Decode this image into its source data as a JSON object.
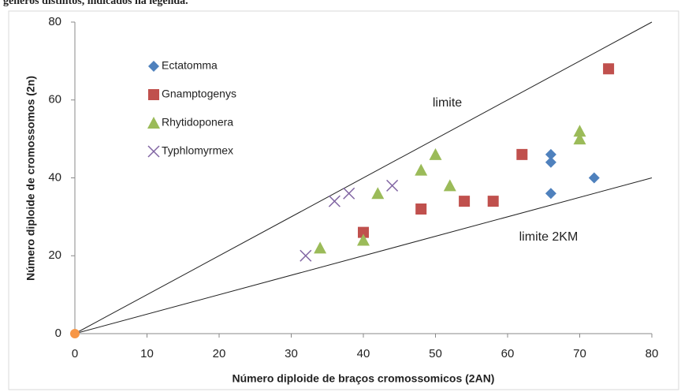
{
  "caption": "gêneros distintos, indicados na legenda.",
  "chart_data": {
    "type": "scatter",
    "xlabel": "Número diploide de braços cromossomicos (2AN)",
    "ylabel": "Número diploide de cromossomos (2n)",
    "xlim": [
      0,
      80
    ],
    "ylim": [
      0,
      80
    ],
    "xticks": [
      0,
      10,
      20,
      30,
      40,
      50,
      60,
      70,
      80
    ],
    "yticks": [
      0,
      20,
      40,
      60,
      80
    ],
    "grid": false,
    "legend": "upper left",
    "series": [
      {
        "name": "Ectatomma",
        "color": "#4f81bd",
        "marker": "diamond",
        "x": [
          66,
          66,
          66,
          72
        ],
        "values": [
          46,
          44,
          36,
          40
        ]
      },
      {
        "name": "Gnamptogenys",
        "color": "#c0504d",
        "marker": "square",
        "x": [
          40,
          48,
          54,
          58,
          62,
          74
        ],
        "values": [
          26,
          32,
          34,
          34,
          46,
          68
        ]
      },
      {
        "name": "Rhytidoponera",
        "color": "#9bbb59",
        "marker": "triangle",
        "x": [
          34,
          40,
          42,
          48,
          50,
          52,
          70,
          70
        ],
        "values": [
          22,
          24,
          36,
          42,
          46,
          38,
          52,
          50
        ]
      },
      {
        "name": "Typhlomyrmex",
        "color": "#8064a2",
        "marker": "x",
        "x": [
          32,
          36,
          38,
          44
        ],
        "values": [
          20,
          34,
          36,
          38
        ]
      }
    ],
    "origin_point": {
      "x": 0,
      "y": 0,
      "color": "#f79646"
    },
    "reference_lines": [
      {
        "label": "limite",
        "x": [
          0,
          80
        ],
        "y": [
          0,
          80
        ]
      },
      {
        "label": "limite 2KM",
        "x": [
          0,
          80
        ],
        "y": [
          0,
          40
        ]
      }
    ]
  }
}
